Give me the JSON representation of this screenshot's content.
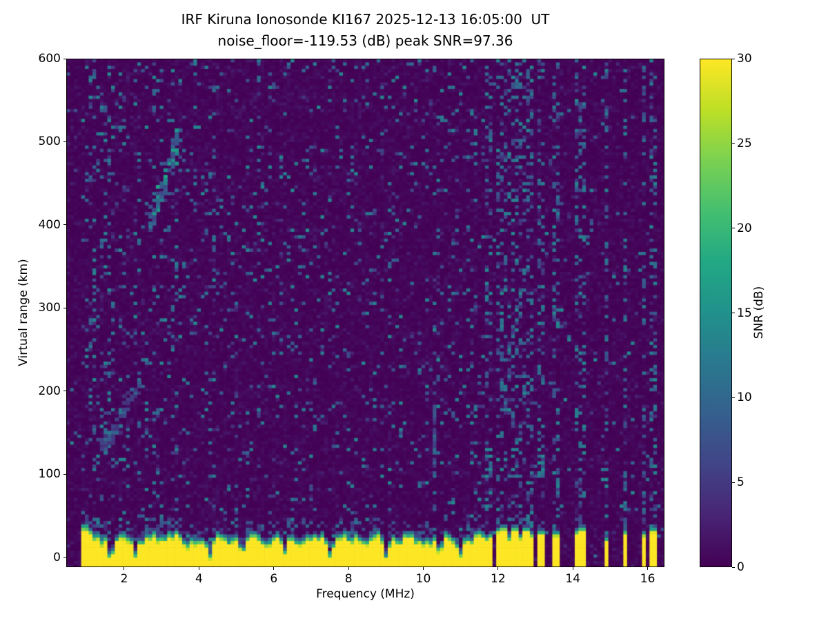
{
  "chart_data": {
    "type": "heatmap",
    "title": "IRF Kiruna Ionosonde KI167 2025-12-13 16:05:00  UT",
    "subtitle": "noise_floor=-119.53 (dB) peak SNR=97.36",
    "station": "IRF Kiruna Ionosonde KI167",
    "timestamp_ut": "2025-12-13 16:05:00",
    "noise_floor_db": -119.53,
    "peak_snr_db": 97.36,
    "xlabel": "Frequency (MHz)",
    "ylabel": "Virtual range (km)",
    "xlim": [
      0.45,
      16.45
    ],
    "ylim": [
      -12,
      600
    ],
    "x_ticks": [
      2,
      4,
      6,
      8,
      10,
      12,
      14,
      16
    ],
    "y_ticks": [
      0,
      100,
      200,
      300,
      400,
      500,
      600
    ],
    "grid": false,
    "colorbar": {
      "label": "SNR (dB)",
      "vmin": 0,
      "vmax": 30,
      "ticks": [
        0,
        5,
        10,
        15,
        20,
        25,
        30
      ]
    },
    "colormap": {
      "name": "viridis",
      "stops": [
        [
          0.0,
          "#440154"
        ],
        [
          0.1,
          "#482475"
        ],
        [
          0.2,
          "#414487"
        ],
        [
          0.3,
          "#355f8d"
        ],
        [
          0.4,
          "#2a788e"
        ],
        [
          0.5,
          "#21918c"
        ],
        [
          0.6,
          "#22a884"
        ],
        [
          0.7,
          "#44bf70"
        ],
        [
          0.8,
          "#7ad151"
        ],
        [
          0.9,
          "#bddf26"
        ],
        [
          1.0,
          "#fde725"
        ]
      ]
    },
    "cell": {
      "df_mhz": 0.1,
      "dr_km": 4
    },
    "seed": 167,
    "features": {
      "ground_pulse_band": {
        "f_start_mhz": 0.88,
        "f_end_mhz": 11.62,
        "base_top_km": 25,
        "peak_snr_db": 30,
        "notches_mhz": [
          1.65,
          2.3,
          3.65,
          4.3,
          5.15,
          6.3,
          7.5,
          9.0,
          10.45,
          11.0
        ]
      },
      "rfi_stripes_mhz": [
        11.68,
        11.82,
        11.97,
        12.12,
        12.27,
        12.42,
        12.57,
        12.72,
        12.9,
        13.05,
        13.5,
        14.05,
        14.18,
        14.9,
        15.35,
        15.9,
        16.15
      ],
      "echo_traces": [
        {
          "label": "F-region echo",
          "points_mhz_km": [
            [
              2.7,
              405
            ],
            [
              2.95,
              435
            ],
            [
              3.2,
              468
            ],
            [
              3.45,
              505
            ]
          ],
          "snr_db_range": [
            6,
            18
          ],
          "n_points": 95
        },
        {
          "label": "E-region echo",
          "points_mhz_km": [
            [
              1.45,
              130
            ],
            [
              1.85,
              162
            ],
            [
              2.35,
              205
            ]
          ],
          "snr_db_range": [
            4,
            12
          ],
          "n_points": 60
        }
      ],
      "interference_column": {
        "f_mhz": 10.3,
        "range_km": [
          55,
          215
        ],
        "snr_db_range": [
          4,
          11
        ]
      }
    }
  }
}
